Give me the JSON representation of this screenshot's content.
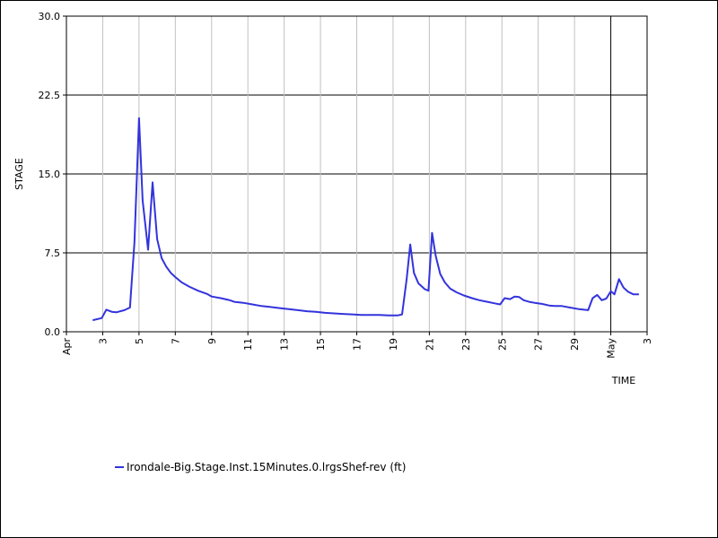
{
  "chart_data": {
    "type": "line",
    "title": "",
    "xlabel": "TIME",
    "ylabel": "STAGE",
    "ylim": [
      0,
      30
    ],
    "y_ticks": [
      "0.0",
      "7.5",
      "15.0",
      "22.5",
      "30.0"
    ],
    "y_tick_values": [
      0,
      7.5,
      15,
      22.5,
      30
    ],
    "x_ticks": [
      {
        "day": 1,
        "label": "Apr",
        "vertical": true
      },
      {
        "day": 3,
        "label": "3"
      },
      {
        "day": 5,
        "label": "5"
      },
      {
        "day": 7,
        "label": "7"
      },
      {
        "day": 9,
        "label": "9"
      },
      {
        "day": 11,
        "label": "11"
      },
      {
        "day": 13,
        "label": "13"
      },
      {
        "day": 15,
        "label": "15"
      },
      {
        "day": 17,
        "label": "17"
      },
      {
        "day": 19,
        "label": "19"
      },
      {
        "day": 21,
        "label": "21"
      },
      {
        "day": 23,
        "label": "23"
      },
      {
        "day": 25,
        "label": "25"
      },
      {
        "day": 27,
        "label": "27"
      },
      {
        "day": 29,
        "label": "29"
      },
      {
        "day": 31,
        "label": "May",
        "vertical": true
      },
      {
        "day": 33,
        "label": "3"
      }
    ],
    "xlim": [
      1,
      33
    ],
    "grid": true,
    "legend_position": "bottom-left",
    "series": [
      {
        "name": "Irondale-Big.Stage.Inst.15Minutes.0.lrgsShef-rev (ft)",
        "color": "#3333dd",
        "points": [
          [
            2.45,
            1.1
          ],
          [
            2.95,
            1.3
          ],
          [
            3.2,
            2.1
          ],
          [
            3.5,
            1.9
          ],
          [
            3.75,
            1.85
          ],
          [
            4.2,
            2.05
          ],
          [
            4.5,
            2.3
          ],
          [
            4.75,
            8.5
          ],
          [
            5.0,
            20.3
          ],
          [
            5.2,
            12.5
          ],
          [
            5.5,
            7.8
          ],
          [
            5.75,
            14.2
          ],
          [
            6.0,
            8.8
          ],
          [
            6.25,
            7.0
          ],
          [
            6.5,
            6.2
          ],
          [
            6.75,
            5.6
          ],
          [
            7.0,
            5.2
          ],
          [
            7.35,
            4.7
          ],
          [
            7.75,
            4.3
          ],
          [
            8.25,
            3.9
          ],
          [
            8.75,
            3.6
          ],
          [
            9.0,
            3.35
          ],
          [
            9.5,
            3.2
          ],
          [
            10.0,
            3.0
          ],
          [
            10.25,
            2.85
          ],
          [
            10.75,
            2.75
          ],
          [
            11.25,
            2.6
          ],
          [
            11.75,
            2.45
          ],
          [
            12.25,
            2.35
          ],
          [
            12.75,
            2.25
          ],
          [
            13.25,
            2.15
          ],
          [
            13.75,
            2.05
          ],
          [
            14.25,
            1.95
          ],
          [
            14.75,
            1.9
          ],
          [
            15.25,
            1.8
          ],
          [
            15.75,
            1.75
          ],
          [
            16.25,
            1.7
          ],
          [
            16.75,
            1.65
          ],
          [
            17.25,
            1.6
          ],
          [
            17.75,
            1.6
          ],
          [
            18.25,
            1.6
          ],
          [
            18.75,
            1.55
          ],
          [
            19.25,
            1.55
          ],
          [
            19.5,
            1.65
          ],
          [
            19.75,
            5.0
          ],
          [
            19.95,
            8.3
          ],
          [
            20.15,
            5.6
          ],
          [
            20.4,
            4.6
          ],
          [
            20.75,
            4.05
          ],
          [
            20.95,
            3.9
          ],
          [
            21.15,
            9.4
          ],
          [
            21.35,
            7.2
          ],
          [
            21.6,
            5.5
          ],
          [
            21.85,
            4.7
          ],
          [
            22.15,
            4.1
          ],
          [
            22.5,
            3.75
          ],
          [
            22.9,
            3.45
          ],
          [
            23.35,
            3.2
          ],
          [
            23.75,
            3.0
          ],
          [
            24.2,
            2.85
          ],
          [
            24.6,
            2.7
          ],
          [
            24.9,
            2.6
          ],
          [
            25.15,
            3.2
          ],
          [
            25.45,
            3.1
          ],
          [
            25.7,
            3.35
          ],
          [
            25.95,
            3.3
          ],
          [
            26.2,
            3.0
          ],
          [
            26.5,
            2.85
          ],
          [
            26.8,
            2.75
          ],
          [
            27.2,
            2.65
          ],
          [
            27.6,
            2.5
          ],
          [
            27.9,
            2.45
          ],
          [
            28.3,
            2.45
          ],
          [
            28.75,
            2.3
          ],
          [
            29.25,
            2.15
          ],
          [
            29.75,
            2.05
          ],
          [
            30.0,
            3.2
          ],
          [
            30.25,
            3.5
          ],
          [
            30.5,
            3.0
          ],
          [
            30.75,
            3.15
          ],
          [
            31.0,
            3.85
          ],
          [
            31.2,
            3.55
          ],
          [
            31.45,
            5.0
          ],
          [
            31.7,
            4.2
          ],
          [
            31.95,
            3.8
          ],
          [
            32.25,
            3.55
          ],
          [
            32.55,
            3.55
          ]
        ]
      }
    ]
  }
}
